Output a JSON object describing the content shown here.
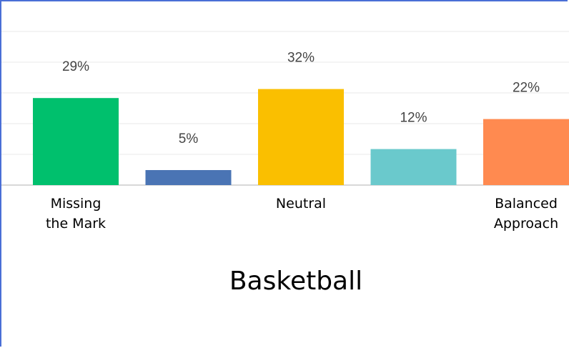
{
  "chart_data": {
    "type": "bar",
    "title": "Basketball",
    "categories": [
      "Missing the Mark",
      "",
      "Neutral",
      "",
      "Balanced Approach"
    ],
    "values": [
      29,
      5,
      32,
      12,
      22
    ],
    "value_labels": [
      "29%",
      "5%",
      "32%",
      "12%",
      "22%"
    ],
    "colors": [
      "#00c06d",
      "#4a74b4",
      "#fabf00",
      "#6ac9cc",
      "#ff8a50"
    ],
    "ylim": [
      0,
      50
    ],
    "grid": true,
    "legend": "none"
  }
}
